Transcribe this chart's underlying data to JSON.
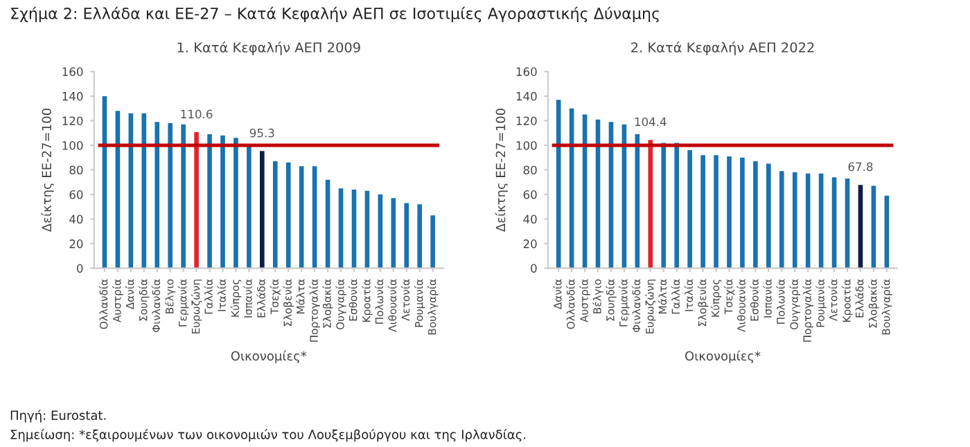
{
  "chart_data": [
    {
      "type": "bar",
      "title": "1. Κατά Κεφαλήν ΑΕΠ 2009",
      "xlabel": "Οικονομίες*",
      "ylabel": "Δείκτης ΕΕ-27=100",
      "annotations": [
        "Σχήμα 2: Ελλάδα και ΕΕ-27 – Κατά Κεφαλήν ΑΕΠ σε Ισοτιμίες Αγοραστικής Δύναμης",
        "Πηγή: Eurostat.",
        "Σημείωση: *εξαιρουμένων των οικονομιών του Λουξεμβούργου και της Ιρλανδίας."
      ],
      "categories": [
        "Ολλανδία",
        "Αυστρία",
        "Δανία",
        "Σουηδία",
        "Φινλανδία",
        "Βέλγιο",
        "Γερμανία",
        "Ευρωζώνη",
        "Γαλλία",
        "Ιταλία",
        "Κύπρος",
        "Ισπανία",
        "Ελλάδα",
        "Τσεχία",
        "Σλοβενία",
        "Μάλτα",
        "Πορτογαλία",
        "Σλοβακία",
        "Ουγγαρία",
        "Εσθονία",
        "Κροατία",
        "Πολωνία",
        "Λιθουανία",
        "Λετονία",
        "Ρουμανία",
        "Βουλγαρία"
      ],
      "values": [
        140,
        128,
        126,
        126,
        119,
        118,
        117,
        110.6,
        109,
        108,
        106,
        99,
        95.3,
        87,
        86,
        83,
        83,
        72,
        65,
        64,
        63,
        60,
        57,
        53,
        52,
        43
      ],
      "value_labels": [
        null,
        null,
        null,
        null,
        null,
        null,
        null,
        "110.6",
        null,
        null,
        null,
        null,
        "95.3",
        null,
        null,
        null,
        null,
        null,
        null,
        null,
        null,
        null,
        null,
        null,
        null,
        null
      ],
      "colors": [
        "#1a72b0",
        "#1a72b0",
        "#1a72b0",
        "#1a72b0",
        "#1a72b0",
        "#1a72b0",
        "#1a72b0",
        "#e0252a",
        "#1a72b0",
        "#1a72b0",
        "#1a72b0",
        "#1a72b0",
        "#0f1e45",
        "#1a72b0",
        "#1a72b0",
        "#1a72b0",
        "#1a72b0",
        "#1a72b0",
        "#1a72b0",
        "#1a72b0",
        "#1a72b0",
        "#1a72b0",
        "#1a72b0",
        "#1a72b0",
        "#1a72b0",
        "#1a72b0"
      ],
      "ylim": [
        0,
        160
      ],
      "yticks": [
        0,
        20,
        40,
        60,
        80,
        100,
        120,
        140,
        160
      ],
      "grid": false,
      "ref_lines": [
        {
          "axis": "y",
          "value": 100,
          "color": "#c00000"
        }
      ]
    },
    {
      "type": "bar",
      "title": "2. Κατά Κεφαλήν ΑΕΠ 2022",
      "xlabel": "Οικονομίες*",
      "ylabel": "Δείκτης ΕΕ-27=100",
      "categories": [
        "Δανία",
        "Ολλανδία",
        "Αυστρία",
        "Βέλγιο",
        "Σουηδία",
        "Γερμανία",
        "Φινλανδία",
        "Ευρωζώνη",
        "Μάλτα",
        "Γαλλία",
        "Ιταλία",
        "Σλοβενία",
        "Κύπρος",
        "Τσεχία",
        "Λιθουανία",
        "Εσθονία",
        "Ισπανία",
        "Πολωνία",
        "Ουγγαρία",
        "Πορτογαλία",
        "Ρουμανία",
        "Λετονία",
        "Κροατία",
        "Ελλάδα",
        "Σλοβακία",
        "Βουλγαρία"
      ],
      "values": [
        137,
        130,
        125,
        121,
        119,
        117,
        109,
        104.4,
        102,
        102,
        96,
        92,
        92,
        91,
        90,
        87,
        85,
        79,
        78,
        77,
        77,
        74,
        73,
        67.8,
        67,
        59
      ],
      "value_labels": [
        null,
        null,
        null,
        null,
        null,
        null,
        null,
        "104.4",
        null,
        null,
        null,
        null,
        null,
        null,
        null,
        null,
        null,
        null,
        null,
        null,
        null,
        null,
        null,
        "67.8",
        null,
        null
      ],
      "colors": [
        "#1a72b0",
        "#1a72b0",
        "#1a72b0",
        "#1a72b0",
        "#1a72b0",
        "#1a72b0",
        "#1a72b0",
        "#e0252a",
        "#1a72b0",
        "#1a72b0",
        "#1a72b0",
        "#1a72b0",
        "#1a72b0",
        "#1a72b0",
        "#1a72b0",
        "#1a72b0",
        "#1a72b0",
        "#1a72b0",
        "#1a72b0",
        "#1a72b0",
        "#1a72b0",
        "#1a72b0",
        "#1a72b0",
        "#0f1e45",
        "#1a72b0",
        "#1a72b0"
      ],
      "ylim": [
        0,
        160
      ],
      "yticks": [
        0,
        20,
        40,
        60,
        80,
        100,
        120,
        140,
        160
      ],
      "grid": false,
      "ref_lines": [
        {
          "axis": "y",
          "value": 100,
          "color": "#c00000"
        }
      ]
    }
  ]
}
